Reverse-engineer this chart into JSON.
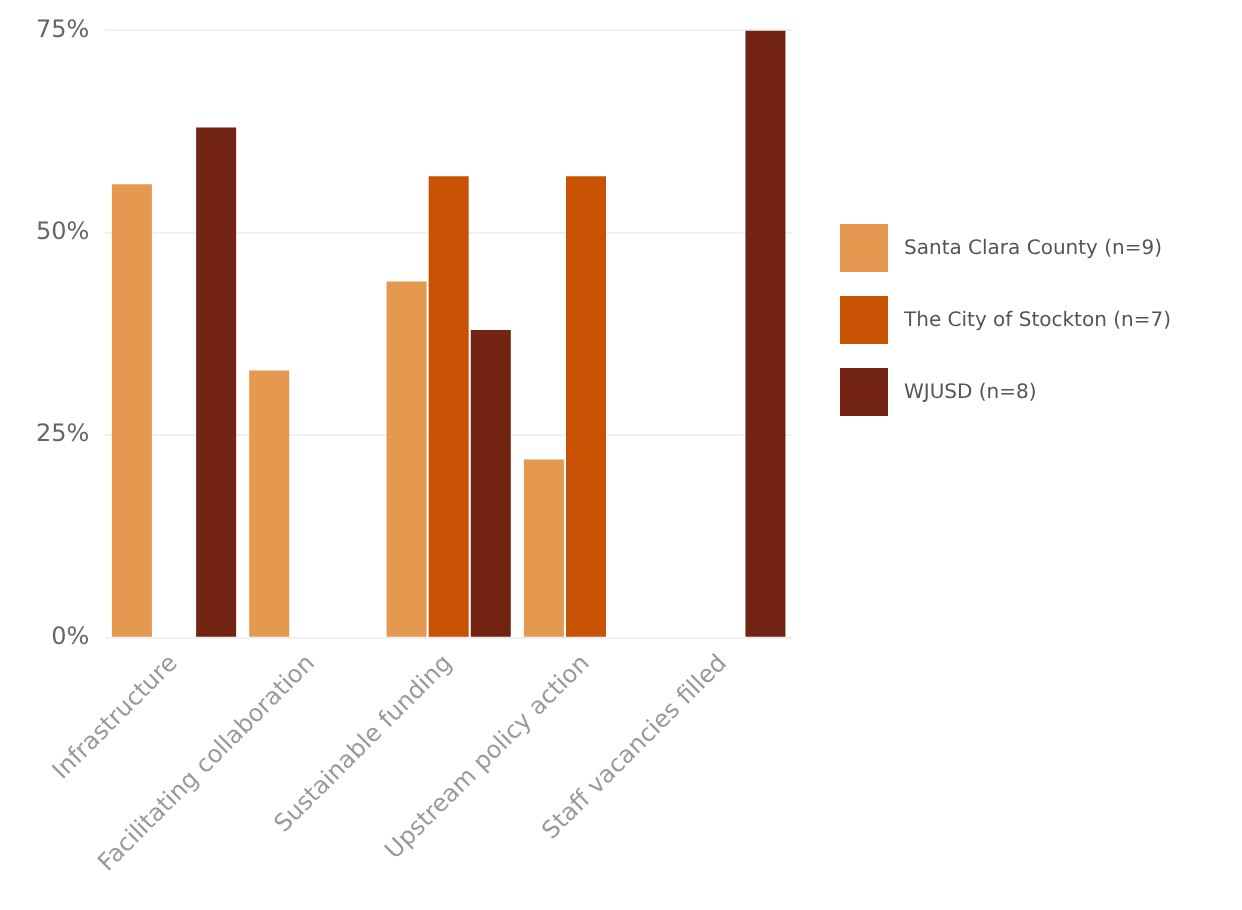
{
  "chart_data": {
    "type": "bar",
    "categories": [
      "Infrastructure",
      "Facilitating collaboration",
      "Sustainable funding",
      "Upstream policy action",
      "Staff vacancies filled"
    ],
    "series": [
      {
        "name": "Santa Clara County (n=9)",
        "color": "#e59850",
        "values": [
          56,
          33,
          44,
          22,
          null
        ]
      },
      {
        "name": "The City of Stockton (n=7)",
        "color": "#c85103",
        "values": [
          null,
          null,
          57,
          57,
          null
        ]
      },
      {
        "name": "WJUSD (n=8)",
        "color": "#722312",
        "values": [
          63,
          null,
          38,
          null,
          75
        ]
      }
    ],
    "ylim": [
      0,
      75
    ],
    "yticks": [
      {
        "value": 0,
        "label": "0%"
      },
      {
        "value": 25,
        "label": "25%"
      },
      {
        "value": 50,
        "label": "50%"
      },
      {
        "value": 75,
        "label": "75%"
      }
    ],
    "grid": "y",
    "legend": "right"
  }
}
